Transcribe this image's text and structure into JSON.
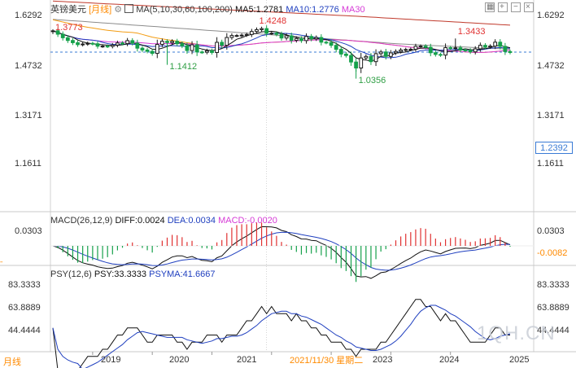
{
  "header": {
    "instrument": "英镑美元",
    "period_tag": "[月线]",
    "ma_label": "MA(5,10,30,60,100,200)",
    "ma5": "MA5:1.2781",
    "ma10": "MA10:1.2776",
    "ma30": "MA30"
  },
  "macd": {
    "label": "MACD(26,12,9)",
    "diff": "DIFF:0.0024",
    "dea": "DEA:0.0034",
    "macd": "MACD:-0.0020"
  },
  "psy": {
    "label": "PSY(12,6)",
    "psy": "PSY:33.3333",
    "psyma": "PSYMA:41.6667"
  },
  "period_button": "月线",
  "crosshair_date": "2021/11/30 星期二",
  "current_price": "1.2392",
  "watermark": "1QH.CN",
  "colors": {
    "up": "#1a1a1a",
    "down": "#15a04a",
    "ma_red": "#c0392b",
    "ma_gray": "#8c8c8c",
    "ma_orange": "#f39c12",
    "ma_magenta": "#d63ad6",
    "ma_black": "#111111",
    "ma_blue": "#1f3fbf",
    "accent": "#3a7bd5",
    "label_red": "#e03131",
    "label_green": "#2f9e44"
  },
  "chart_data": [
    {
      "type": "candlestick",
      "title": "英镑美元 [月线]",
      "y_ticks": [
        "1.6292",
        "1.4732",
        "1.3171",
        "1.1611"
      ],
      "ylim": [
        1.0,
        1.68
      ],
      "x_ticks": [
        "2019",
        "2020",
        "2021",
        "2022",
        "2023",
        "2024",
        "2025"
      ],
      "annotations": [
        {
          "text": "1.3773",
          "value": 1.3773,
          "date": "2018.04",
          "kind": "high"
        },
        {
          "text": "1.1412",
          "value": 1.1412,
          "date": "2020.03",
          "kind": "low"
        },
        {
          "text": "1.4248",
          "value": 1.4248,
          "date": "2021.06",
          "kind": "high"
        },
        {
          "text": "1.0356",
          "value": 1.0356,
          "date": "2022.09",
          "kind": "low"
        },
        {
          "text": "1.3433",
          "value": 1.3433,
          "date": "2024.09",
          "kind": "high"
        }
      ],
      "current_price": 1.2392,
      "close": [
        1.402,
        1.376,
        1.349,
        1.328,
        1.311,
        1.296,
        1.301,
        1.306,
        1.303,
        1.284,
        1.285,
        1.283,
        1.293,
        1.309,
        1.304,
        1.327,
        1.308,
        1.269,
        1.255,
        1.245,
        1.229,
        1.298,
        1.322,
        1.312,
        1.322,
        1.303,
        1.287,
        1.251,
        1.295,
        1.24,
        1.238,
        1.249,
        1.236,
        1.314,
        1.291,
        1.351,
        1.366,
        1.366,
        1.369,
        1.374,
        1.397,
        1.411,
        1.419,
        1.383,
        1.384,
        1.375,
        1.347,
        1.364,
        1.329,
        1.343,
        1.327,
        1.359,
        1.34,
        1.351,
        1.315,
        1.312,
        1.291,
        1.26,
        1.224,
        1.213,
        1.163,
        1.117,
        1.194,
        1.206,
        1.166,
        1.227,
        1.24,
        1.206,
        1.233,
        1.244,
        1.255,
        1.259,
        1.261,
        1.283,
        1.285,
        1.276,
        1.234,
        1.221,
        1.216,
        1.273,
        1.268,
        1.272,
        1.255,
        1.253,
        1.241,
        1.264,
        1.291,
        1.278,
        1.285,
        1.315,
        1.283,
        1.243,
        1.236
      ],
      "series": [
        {
          "name": "MA5",
          "value": 1.2781
        },
        {
          "name": "MA10",
          "value": 1.2776
        },
        {
          "name": "MA30"
        }
      ]
    },
    {
      "type": "bar",
      "title": "MACD(26,12,9)",
      "y_ticks": [
        "0.0303",
        "-0.0082"
      ],
      "ylim": [
        -0.05,
        0.045
      ],
      "series": [
        {
          "name": "DIFF",
          "value": 0.0024
        },
        {
          "name": "DEA",
          "value": 0.0034
        },
        {
          "name": "MACD",
          "value": -0.002
        }
      ]
    },
    {
      "type": "line",
      "title": "PSY(12,6)",
      "y_ticks": [
        "83.3333",
        "63.8889",
        "44.4444"
      ],
      "ylim": [
        25,
        95
      ],
      "series": [
        {
          "name": "PSY",
          "value": 33.3333
        },
        {
          "name": "PSYMA",
          "value": 41.6667
        }
      ]
    }
  ]
}
